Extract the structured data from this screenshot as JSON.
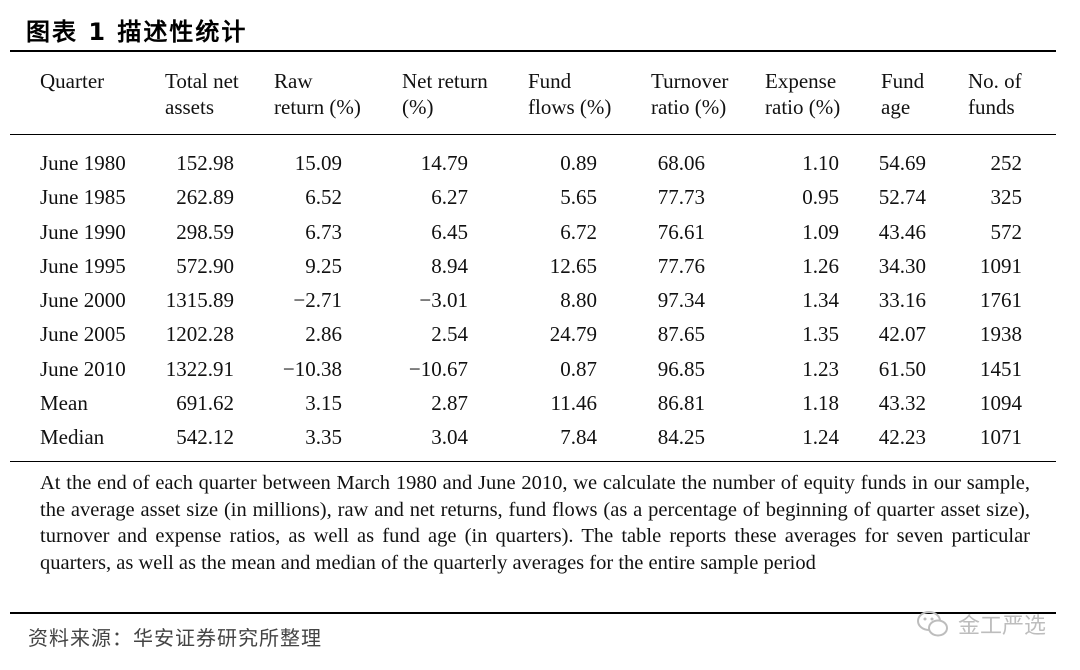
{
  "title": "图表 1 描述性统计",
  "columns": [
    "Quarter",
    "Total net\nassets",
    "Raw\nreturn (%)",
    "Net return\n(%)",
    "Fund\nflows (%)",
    "Turnover\nratio (%)",
    "Expense\nratio (%)",
    "Fund\nage",
    "No. of\nfunds"
  ],
  "rows": [
    [
      "June 1980",
      "152.98",
      "15.09",
      "14.79",
      "0.89",
      "68.06",
      "1.10",
      "54.69",
      "252"
    ],
    [
      "June 1985",
      "262.89",
      "6.52",
      "6.27",
      "5.65",
      "77.73",
      "0.95",
      "52.74",
      "325"
    ],
    [
      "June 1990",
      "298.59",
      "6.73",
      "6.45",
      "6.72",
      "76.61",
      "1.09",
      "43.46",
      "572"
    ],
    [
      "June 1995",
      "572.90",
      "9.25",
      "8.94",
      "12.65",
      "77.76",
      "1.26",
      "34.30",
      "1091"
    ],
    [
      "June 2000",
      "1315.89",
      "−2.71",
      "−3.01",
      "8.80",
      "97.34",
      "1.34",
      "33.16",
      "1761"
    ],
    [
      "June 2005",
      "1202.28",
      "2.86",
      "2.54",
      "24.79",
      "87.65",
      "1.35",
      "42.07",
      "1938"
    ],
    [
      "June 2010",
      "1322.91",
      "−10.38",
      "−10.67",
      "0.87",
      "96.85",
      "1.23",
      "61.50",
      "1451"
    ],
    [
      "Mean",
      "691.62",
      "3.15",
      "2.87",
      "11.46",
      "86.81",
      "1.18",
      "43.32",
      "1094"
    ],
    [
      "Median",
      "542.12",
      "3.35",
      "3.04",
      "7.84",
      "84.25",
      "1.24",
      "42.23",
      "1071"
    ]
  ],
  "note": "At the end of each quarter between March 1980 and June 2010, we calculate the number of equity funds in our sample, the average asset size (in millions), raw and net returns, fund flows (as a percentage of beginning of quarter asset size), turnover and expense ratios, as well as fund age (in quarters). The table reports these averages for seven particular quarters, as well as the mean and median of the quarterly averages for the entire sample period",
  "source": "资料来源：华安证券研究所整理",
  "watermark": "金工严选"
}
